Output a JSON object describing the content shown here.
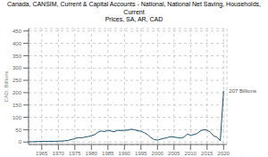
{
  "chart_data": {
    "type": "line",
    "title": "Canada, CANSIM, Current & Capital Accounts - National, National Net Saving, Households, Current\nPrices, SA, AR, CAD",
    "ylabel": "CAD, Billions",
    "x": [
      1961,
      1962,
      1963,
      1964,
      1965,
      1966,
      1967,
      1968,
      1969,
      1970,
      1971,
      1972,
      1973,
      1974,
      1975,
      1976,
      1977,
      1978,
      1979,
      1980,
      1981,
      1982,
      1983,
      1984,
      1985,
      1986,
      1987,
      1988,
      1989,
      1990,
      1991,
      1992,
      1993,
      1994,
      1995,
      1996,
      1997,
      1998,
      1999,
      2000,
      2001,
      2002,
      2003,
      2004,
      2005,
      2006,
      2007,
      2008,
      2009,
      2010,
      2011,
      2012,
      2013,
      2014,
      2015,
      2016,
      2017,
      2018,
      2019,
      2020
    ],
    "values": [
      1.0,
      1.2,
      1.5,
      2.0,
      2.5,
      2.8,
      3.0,
      2.8,
      3.0,
      3.5,
      4.0,
      5.0,
      7.0,
      10.0,
      14.0,
      18.0,
      17.0,
      20.0,
      22.0,
      26.0,
      30.0,
      40.0,
      45.0,
      42.0,
      48.0,
      44.0,
      42.0,
      48.0,
      46.0,
      48.0,
      48.0,
      52.0,
      50.0,
      46.0,
      44.0,
      38.0,
      30.0,
      18.0,
      10.0,
      8.0,
      12.0,
      15.0,
      18.0,
      22.0,
      20.0,
      18.0,
      16.0,
      20.0,
      32.0,
      28.0,
      30.0,
      35.0,
      45.0,
      50.0,
      48.0,
      40.0,
      25.0,
      20.0,
      5.0,
      207.0
    ],
    "color": "#1a5276",
    "xlim": [
      1961,
      2021
    ],
    "xticks": [
      1965,
      1970,
      1975,
      1980,
      1985,
      1990,
      1995,
      2000,
      2005,
      2010,
      2015,
      2020
    ],
    "ylim": [
      -10,
      460
    ],
    "yticks": [
      0,
      50,
      100,
      150,
      200,
      250,
      300,
      350,
      400,
      450
    ],
    "grid": true,
    "annotations": [
      {
        "text": "207 Billions",
        "x": 2020,
        "y": 207
      }
    ]
  }
}
